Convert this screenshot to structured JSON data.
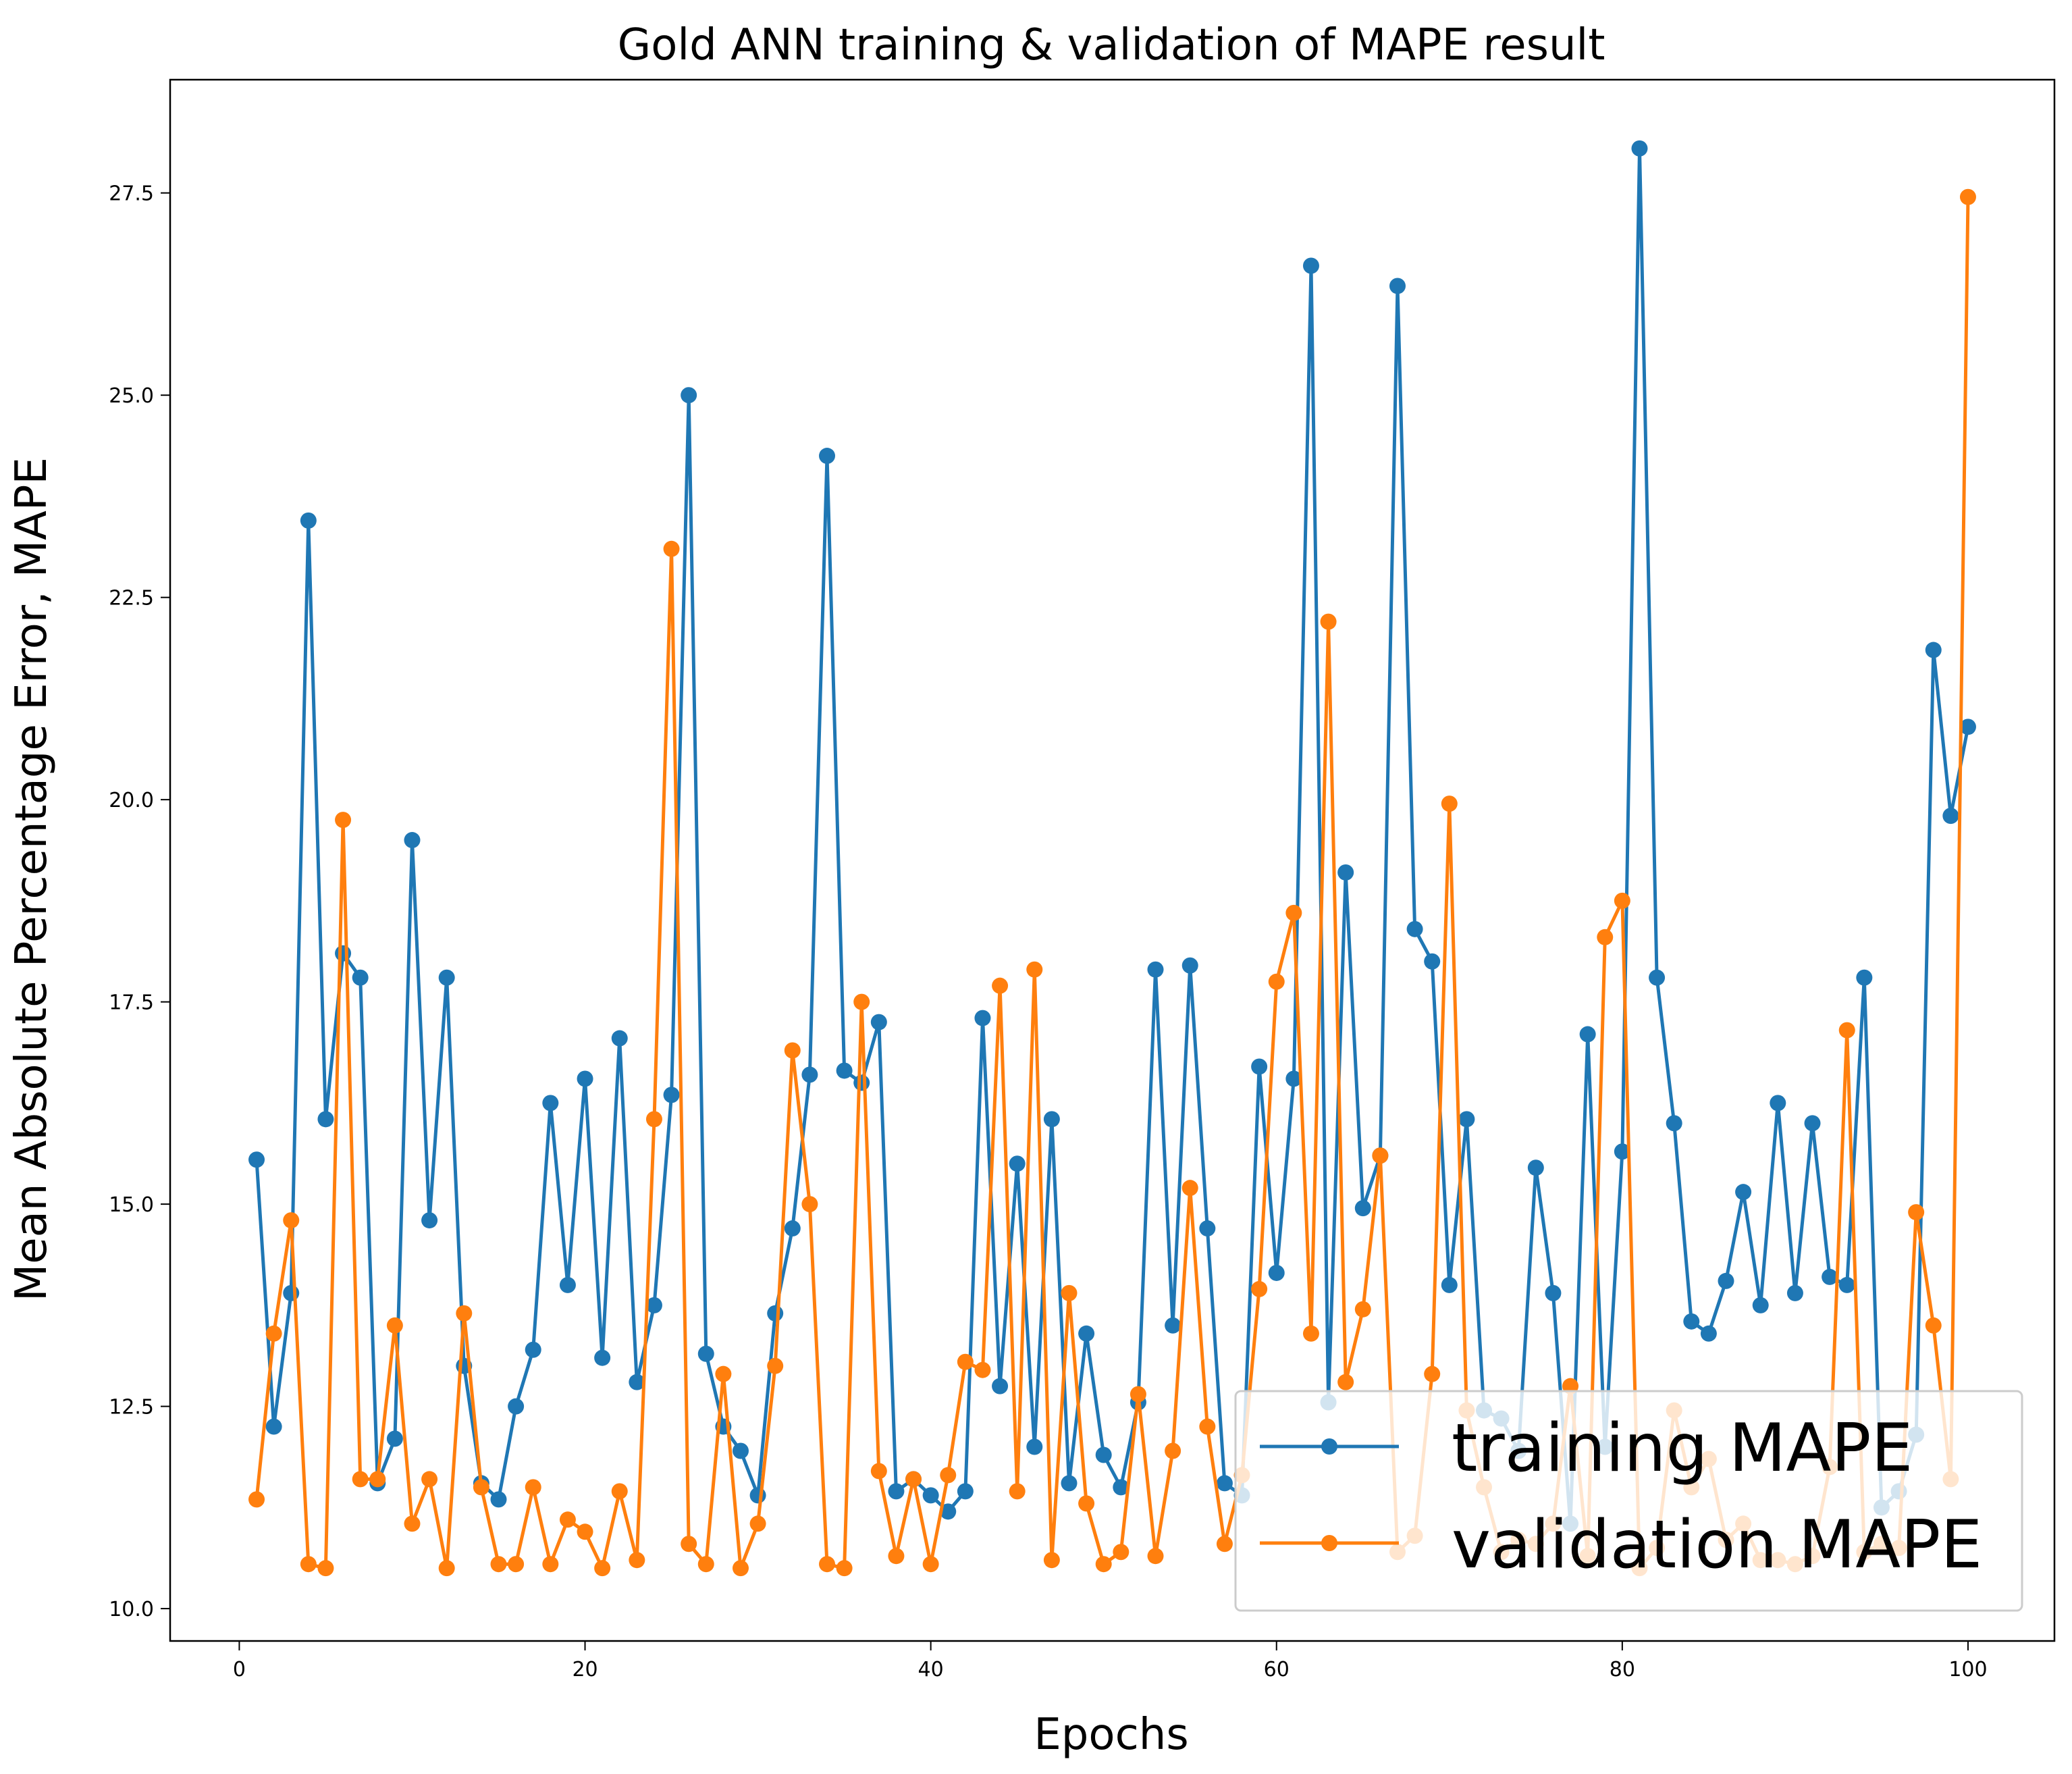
{
  "chart_data": {
    "type": "line",
    "title": "Gold ANN training & validation of MAPE result",
    "xlabel": "Epochs",
    "ylabel": "Mean Absolute Percentage Error, MAPE",
    "xlim": [
      -4,
      105
    ],
    "ylim": [
      9.6,
      28.9
    ],
    "xticks": [
      0,
      20,
      40,
      60,
      80,
      100
    ],
    "yticks": [
      10.0,
      12.5,
      15.0,
      17.5,
      20.0,
      22.5,
      25.0,
      27.5
    ],
    "legend_position": "lower-right",
    "grid": false,
    "x": [
      1,
      2,
      3,
      4,
      5,
      6,
      7,
      8,
      9,
      10,
      11,
      12,
      13,
      14,
      15,
      16,
      17,
      18,
      19,
      20,
      21,
      22,
      23,
      24,
      25,
      26,
      27,
      28,
      29,
      30,
      31,
      32,
      33,
      34,
      35,
      36,
      37,
      38,
      39,
      40,
      41,
      42,
      43,
      44,
      45,
      46,
      47,
      48,
      49,
      50,
      51,
      52,
      53,
      54,
      55,
      56,
      57,
      58,
      59,
      60,
      61,
      62,
      63,
      64,
      65,
      66,
      67,
      68,
      69,
      70,
      71,
      72,
      73,
      74,
      75,
      76,
      77,
      78,
      79,
      80,
      81,
      82,
      83,
      84,
      85,
      86,
      87,
      88,
      89,
      90,
      91,
      92,
      93,
      94,
      95,
      96,
      97,
      98,
      99,
      100
    ],
    "series": [
      {
        "name": "training MAPE",
        "color": "#1f77b4",
        "values": [
          15.55,
          12.25,
          13.9,
          23.45,
          16.05,
          18.1,
          17.8,
          11.55,
          12.1,
          19.5,
          14.8,
          17.8,
          13.0,
          11.55,
          11.35,
          12.5,
          13.2,
          16.25,
          14.0,
          16.55,
          13.1,
          17.05,
          12.8,
          13.75,
          16.35,
          25.0,
          13.15,
          12.25,
          11.95,
          11.4,
          13.65,
          14.7,
          16.6,
          24.25,
          16.65,
          16.5,
          17.25,
          11.45,
          11.6,
          11.4,
          11.2,
          11.45,
          17.3,
          12.75,
          15.5,
          12.0,
          16.05,
          11.55,
          13.4,
          11.9,
          11.5,
          12.55,
          17.9,
          13.5,
          17.95,
          14.7,
          11.55,
          11.4,
          16.7,
          14.15,
          16.55,
          26.6,
          12.55,
          19.1,
          14.95,
          15.6,
          26.35,
          18.4,
          18.0,
          14.0,
          16.05,
          12.45,
          12.35,
          11.95,
          15.45,
          13.9,
          11.05,
          17.1,
          12.0,
          15.65,
          28.05,
          17.8,
          16.0,
          13.55,
          13.4,
          14.05,
          15.15,
          13.75,
          16.25,
          13.9,
          16.0,
          14.1,
          14.0,
          17.8,
          11.25,
          11.45,
          12.15,
          21.85,
          19.8,
          20.9
        ]
      },
      {
        "name": "validation MAPE",
        "color": "#ff7f0e",
        "values": [
          11.35,
          13.4,
          14.8,
          10.55,
          10.5,
          19.75,
          11.6,
          11.6,
          13.5,
          11.05,
          11.6,
          10.5,
          13.65,
          11.5,
          10.55,
          10.55,
          11.5,
          10.55,
          11.1,
          10.95,
          10.5,
          11.45,
          10.6,
          16.05,
          23.1,
          10.8,
          10.55,
          12.9,
          10.5,
          11.05,
          13.0,
          16.9,
          15.0,
          10.55,
          10.5,
          17.5,
          11.7,
          10.65,
          11.6,
          10.55,
          11.65,
          13.05,
          12.95,
          17.7,
          11.45,
          17.9,
          10.6,
          13.9,
          11.3,
          10.55,
          10.7,
          12.65,
          10.65,
          11.95,
          15.2,
          12.25,
          10.8,
          11.65,
          13.95,
          17.75,
          18.6,
          13.4,
          22.2,
          12.8,
          13.7,
          15.6,
          10.7,
          10.9,
          12.9,
          19.95,
          12.45,
          11.5,
          10.7,
          10.85,
          10.8,
          11.05,
          12.75,
          10.65,
          18.3,
          18.75,
          10.5,
          10.75,
          12.45,
          11.5,
          11.85,
          10.85,
          11.05,
          10.6,
          10.6,
          10.55,
          10.65,
          11.75,
          17.15,
          10.7,
          10.8,
          10.75,
          14.9,
          13.5,
          11.6,
          27.45
        ]
      }
    ]
  }
}
